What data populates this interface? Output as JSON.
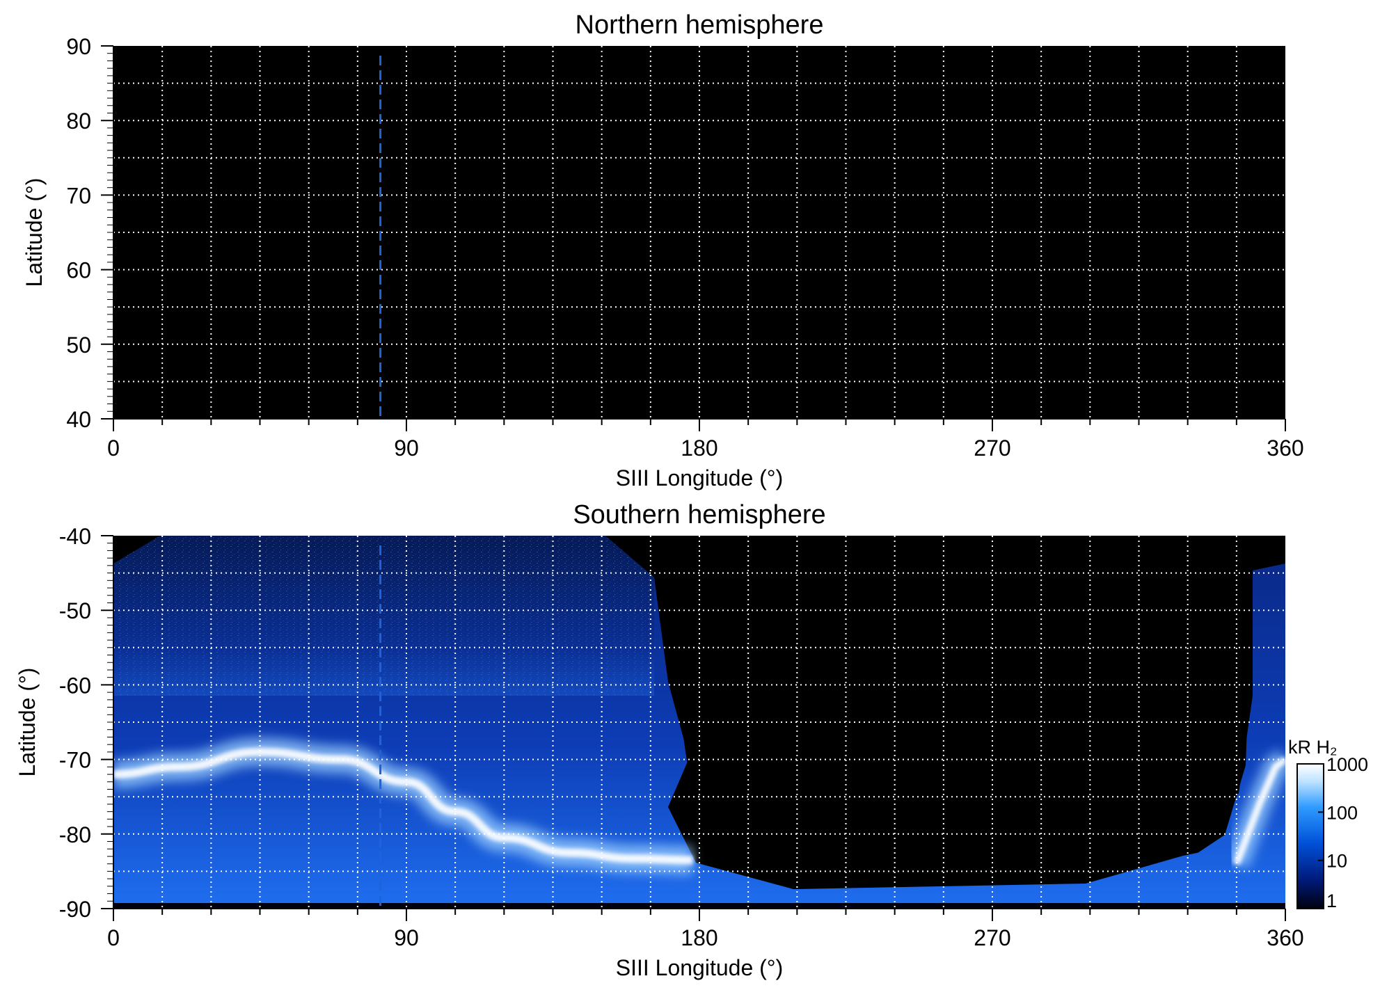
{
  "chart_data": [
    {
      "type": "heatmap",
      "id": "north",
      "title": "Northern hemisphere",
      "xlabel": "SIII Longitude (°)",
      "ylabel": "Latitude (°)",
      "xlim": [
        0,
        360
      ],
      "ylim": [
        40,
        90
      ],
      "x_ticks": [
        "0",
        "90",
        "180",
        "270",
        "360"
      ],
      "y_ticks": [
        "90",
        "80",
        "70",
        "60",
        "50",
        "40"
      ],
      "grid": true,
      "grid_x_step": 15,
      "grid_y_step": 5,
      "marker_longitude": 82,
      "emission": "none"
    },
    {
      "type": "heatmap",
      "id": "south",
      "title": "Southern hemisphere",
      "xlabel": "SIII Longitude (°)",
      "ylabel": "Latitude (°)",
      "xlim": [
        0,
        360
      ],
      "ylim": [
        -90,
        -40
      ],
      "x_ticks": [
        "0",
        "90",
        "180",
        "270",
        "360"
      ],
      "y_ticks": [
        "-40",
        "-50",
        "-60",
        "-70",
        "-80",
        "-90"
      ],
      "grid": true,
      "grid_x_step": 15,
      "grid_y_step": 5,
      "marker_longitude": 82,
      "auroral_oval": [
        {
          "lon": 0,
          "lat": -72
        },
        {
          "lon": 20,
          "lat": -71
        },
        {
          "lon": 45,
          "lat": -69
        },
        {
          "lon": 70,
          "lat": -70
        },
        {
          "lon": 90,
          "lat": -73
        },
        {
          "lon": 105,
          "lat": -77
        },
        {
          "lon": 120,
          "lat": -80.5
        },
        {
          "lon": 140,
          "lat": -82.5
        },
        {
          "lon": 160,
          "lat": -83.3
        },
        {
          "lon": 178,
          "lat": -83.5
        }
      ],
      "auroral_oval_east": [
        {
          "lon": 345,
          "lat": -84
        },
        {
          "lon": 352,
          "lat": -76
        },
        {
          "lon": 357,
          "lat": -71
        },
        {
          "lon": 360,
          "lat": -70
        }
      ]
    }
  ],
  "colorbar": {
    "title": "kR H₂",
    "scale": "log",
    "range": [
      1,
      1000
    ],
    "ticks": [
      "1000",
      "100",
      "10",
      "1"
    ],
    "colors": [
      "#000010",
      "#001a7a",
      "#0050d8",
      "#2f9bff",
      "#bfe3ff",
      "#ffffff"
    ]
  },
  "colors": {
    "background": "#000000",
    "grid": "#ffffff",
    "marker": "#1e64d8"
  }
}
